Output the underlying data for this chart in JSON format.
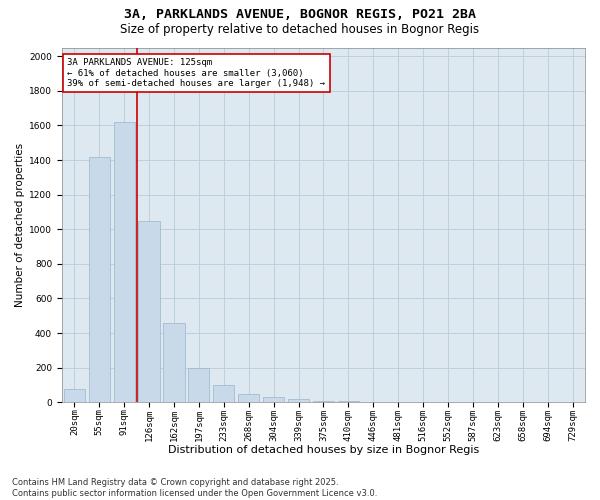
{
  "title_line1": "3A, PARKLANDS AVENUE, BOGNOR REGIS, PO21 2BA",
  "title_line2": "Size of property relative to detached houses in Bognor Regis",
  "xlabel": "Distribution of detached houses by size in Bognor Regis",
  "ylabel": "Number of detached properties",
  "categories": [
    "20sqm",
    "55sqm",
    "91sqm",
    "126sqm",
    "162sqm",
    "197sqm",
    "233sqm",
    "268sqm",
    "304sqm",
    "339sqm",
    "375sqm",
    "410sqm",
    "446sqm",
    "481sqm",
    "516sqm",
    "552sqm",
    "587sqm",
    "623sqm",
    "658sqm",
    "694sqm",
    "729sqm"
  ],
  "values": [
    75,
    1420,
    1620,
    1050,
    460,
    200,
    100,
    50,
    30,
    20,
    10,
    5,
    3,
    2,
    1,
    1,
    0,
    0,
    0,
    0,
    0
  ],
  "bar_color": "#c8d9ea",
  "bar_edgecolor": "#9ab5cc",
  "vline_color": "#cc0000",
  "annotation_text": "3A PARKLANDS AVENUE: 125sqm\n← 61% of detached houses are smaller (3,060)\n39% of semi-detached houses are larger (1,948) →",
  "annotation_box_color": "#ffffff",
  "annotation_box_edgecolor": "#cc0000",
  "ylim": [
    0,
    2050
  ],
  "yticks": [
    0,
    200,
    400,
    600,
    800,
    1000,
    1200,
    1400,
    1600,
    1800,
    2000
  ],
  "bg_color": "#ffffff",
  "plot_bg_color": "#dde8f0",
  "grid_color": "#b8cdd8",
  "footnote": "Contains HM Land Registry data © Crown copyright and database right 2025.\nContains public sector information licensed under the Open Government Licence v3.0.",
  "title_fontsize": 9.5,
  "subtitle_fontsize": 8.5,
  "xlabel_fontsize": 8,
  "ylabel_fontsize": 7.5,
  "tick_fontsize": 6.5,
  "footnote_fontsize": 6,
  "annotation_fontsize": 6.5
}
